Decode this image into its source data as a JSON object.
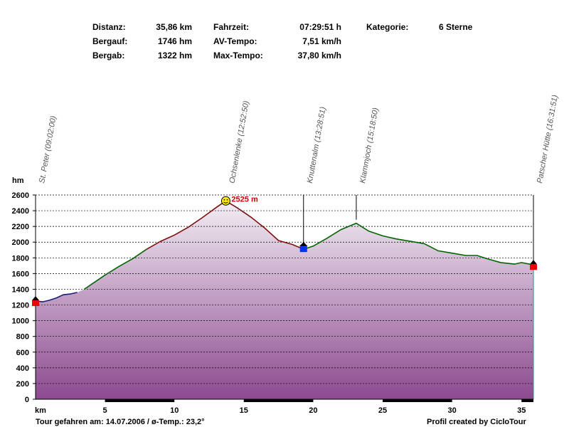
{
  "stats": {
    "distanz_label": "Distanz:",
    "distanz_value": "35,86 km",
    "bergauf_label": "Bergauf:",
    "bergauf_value": "1746 hm",
    "bergab_label": "Bergab:",
    "bergab_value": "1322 hm",
    "fahrzeit_label": "Fahrzeit:",
    "fahrzeit_value": "07:29:51 h",
    "avtempo_label": "AV-Tempo:",
    "avtempo_value": "7,51 km/h",
    "maxtempo_label": "Max-Tempo:",
    "maxtempo_value": "37,80 km/h",
    "kategorie_label": "Kategorie:",
    "kategorie_value": "6 Sterne"
  },
  "footer": {
    "tour_text": "Tour gefahren am: 14.07.2006  /  ø-Temp.: 23,2°",
    "credit": "Profil created by CicloTour"
  },
  "chart_data": {
    "type": "area",
    "ylabel": "hm",
    "xlabel": "km",
    "ylim": [
      0,
      2600
    ],
    "xlim": [
      0,
      35.86
    ],
    "yticks": [
      0,
      200,
      400,
      600,
      800,
      1000,
      1200,
      1400,
      1600,
      1800,
      2000,
      2200,
      2400,
      2600
    ],
    "xticks": [
      5,
      10,
      15,
      20,
      25,
      30,
      35
    ],
    "grid": "horizontal-dashed",
    "peak_label": "2525 m",
    "colors": {
      "fill_top": "#f3eef4",
      "fill_bottom": "#8c4a8f",
      "segment_1": "#1c1c7a",
      "segment_2": "#006600",
      "segment_3": "#7a1010",
      "segment_4": "#006600",
      "peak_label": "#cc0000",
      "peak_icon": "#ffee00"
    },
    "profile": [
      {
        "x": 0.0,
        "y": 1250
      },
      {
        "x": 0.5,
        "y": 1240
      },
      {
        "x": 1.0,
        "y": 1260
      },
      {
        "x": 1.5,
        "y": 1290
      },
      {
        "x": 2.0,
        "y": 1330
      },
      {
        "x": 2.5,
        "y": 1340
      },
      {
        "x": 3.0,
        "y": 1360
      },
      {
        "x": 3.5,
        "y": 1400
      },
      {
        "x": 4.0,
        "y": 1460
      },
      {
        "x": 5.0,
        "y": 1580
      },
      {
        "x": 6.0,
        "y": 1690
      },
      {
        "x": 7.0,
        "y": 1790
      },
      {
        "x": 8.0,
        "y": 1910
      },
      {
        "x": 9.0,
        "y": 2010
      },
      {
        "x": 10.0,
        "y": 2090
      },
      {
        "x": 11.0,
        "y": 2190
      },
      {
        "x": 12.0,
        "y": 2310
      },
      {
        "x": 13.0,
        "y": 2440
      },
      {
        "x": 13.7,
        "y": 2525
      },
      {
        "x": 14.5,
        "y": 2440
      },
      {
        "x": 15.5,
        "y": 2320
      },
      {
        "x": 16.5,
        "y": 2180
      },
      {
        "x": 17.5,
        "y": 2020
      },
      {
        "x": 18.5,
        "y": 1970
      },
      {
        "x": 19.3,
        "y": 1910
      },
      {
        "x": 20.0,
        "y": 1950
      },
      {
        "x": 21.0,
        "y": 2050
      },
      {
        "x": 22.0,
        "y": 2160
      },
      {
        "x": 23.1,
        "y": 2240
      },
      {
        "x": 24.0,
        "y": 2140
      },
      {
        "x": 25.0,
        "y": 2080
      },
      {
        "x": 26.0,
        "y": 2040
      },
      {
        "x": 27.0,
        "y": 2010
      },
      {
        "x": 28.0,
        "y": 1980
      },
      {
        "x": 29.0,
        "y": 1890
      },
      {
        "x": 30.0,
        "y": 1860
      },
      {
        "x": 31.0,
        "y": 1830
      },
      {
        "x": 31.8,
        "y": 1830
      },
      {
        "x": 32.5,
        "y": 1790
      },
      {
        "x": 33.5,
        "y": 1740
      },
      {
        "x": 34.5,
        "y": 1720
      },
      {
        "x": 35.0,
        "y": 1740
      },
      {
        "x": 35.86,
        "y": 1710
      }
    ],
    "segments": [
      {
        "from": 0,
        "to": 3.3,
        "color": "#1c1c7a"
      },
      {
        "from": 3.3,
        "to": 8.0,
        "color": "#006600"
      },
      {
        "from": 8.0,
        "to": 19.3,
        "color": "#7a1010"
      },
      {
        "from": 19.3,
        "to": 35.86,
        "color": "#006600"
      }
    ],
    "waypoints": [
      {
        "name": "St. Peter (09:02:00)",
        "x": 0.0,
        "y": 1250,
        "marker": "start",
        "leader": false
      },
      {
        "name": "Ochsenlenke (12:52:50)",
        "x": 13.7,
        "y": 2525,
        "marker": "peak",
        "leader": false
      },
      {
        "name": "Knuttenalm (13:28:51)",
        "x": 19.3,
        "y": 1910,
        "marker": "blue",
        "leader": true
      },
      {
        "name": "Klammjoch (15:18:50)",
        "x": 23.1,
        "y": 2240,
        "marker": "none",
        "leader": true
      },
      {
        "name": "Patscher Hütte (16:31:51)",
        "x": 35.86,
        "y": 1710,
        "marker": "end",
        "leader": true
      }
    ]
  }
}
